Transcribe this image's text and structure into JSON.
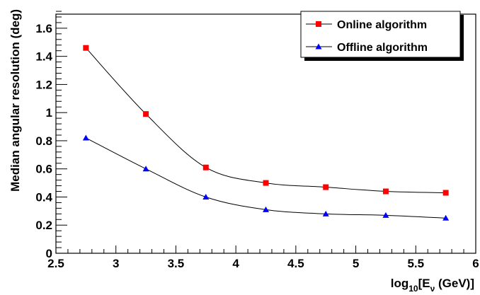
{
  "chart_data": {
    "type": "line",
    "x": [
      2.75,
      3.25,
      3.75,
      4.25,
      4.75,
      5.25,
      5.75
    ],
    "series": [
      {
        "name": "Online algorithm",
        "values": [
          1.46,
          0.99,
          0.61,
          0.5,
          0.47,
          0.44,
          0.43
        ],
        "color": "#ff0000",
        "marker": "square"
      },
      {
        "name": "Offline algorithm",
        "values": [
          0.82,
          0.6,
          0.4,
          0.31,
          0.28,
          0.27,
          0.25
        ],
        "color": "#0000ff",
        "marker": "triangle"
      }
    ],
    "ylabel": "Median angular resolution (deg)",
    "xlabel": {
      "prefix": "log",
      "sub": "10",
      "mid": "[E",
      "nu": "ν",
      "suffix": " (GeV)]"
    },
    "xlim": [
      2.5,
      6
    ],
    "ylim": [
      0,
      1.7
    ],
    "x_ticks": [
      "2.5",
      "3",
      "3.5",
      "4",
      "4.5",
      "5",
      "5.5",
      "6"
    ],
    "y_ticks": [
      "0",
      "0.2",
      "0.4",
      "0.6",
      "0.8",
      "1",
      "1.2",
      "1.4",
      "1.6"
    ],
    "legend_position": "top-right",
    "grid": false
  }
}
